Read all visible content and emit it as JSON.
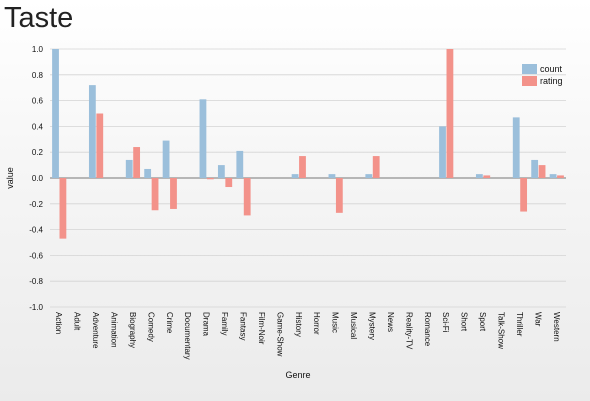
{
  "page": {
    "title": "Taste"
  },
  "chart_data": {
    "type": "bar",
    "title": "",
    "xlabel": "Genre",
    "ylabel": "value",
    "ylim": [
      -1.0,
      1.0
    ],
    "yticks": [
      1.0,
      0.8,
      0.6,
      0.4,
      0.2,
      0.0,
      -0.2,
      -0.4,
      -0.6,
      -0.8,
      -1.0
    ],
    "yticks_labels": [
      "1.0",
      "0.8",
      "0.6",
      "0.4",
      "0.2",
      "0.0",
      "-0.2",
      "-0.4",
      "-0.6",
      "-0.8",
      "-1.0"
    ],
    "grid": true,
    "legend_position": "top-right",
    "categories": [
      "Action",
      "Adult",
      "Adventure",
      "Animation",
      "Biography",
      "Comedy",
      "Crime",
      "Documentary",
      "Drama",
      "Family",
      "Fantasy",
      "Film-Noir",
      "Game-Show",
      "History",
      "Horror",
      "Music",
      "Musical",
      "Mystery",
      "News",
      "Reality-TV",
      "Romance",
      "Sci-Fi",
      "Short",
      "Sport",
      "Talk-Show",
      "Thriller",
      "War",
      "Western"
    ],
    "series": [
      {
        "name": "count",
        "color": "#9bbfdb",
        "values": [
          1.0,
          0,
          0.72,
          0,
          0.14,
          0.07,
          0.29,
          0,
          0.61,
          0.1,
          0.21,
          0,
          0,
          0.03,
          0,
          0.03,
          0,
          0.03,
          0,
          0,
          0,
          0.4,
          0,
          0.03,
          0,
          0.47,
          0.14,
          0.03
        ]
      },
      {
        "name": "rating",
        "color": "#f3928a",
        "values": [
          -0.47,
          0,
          0.5,
          0,
          0.24,
          -0.25,
          -0.24,
          0,
          -0.01,
          -0.07,
          -0.29,
          0,
          0,
          0.17,
          0,
          -0.27,
          0,
          0.17,
          0,
          0,
          0,
          1.0,
          0,
          0.02,
          0,
          -0.26,
          0.1,
          0.02
        ]
      }
    ]
  }
}
